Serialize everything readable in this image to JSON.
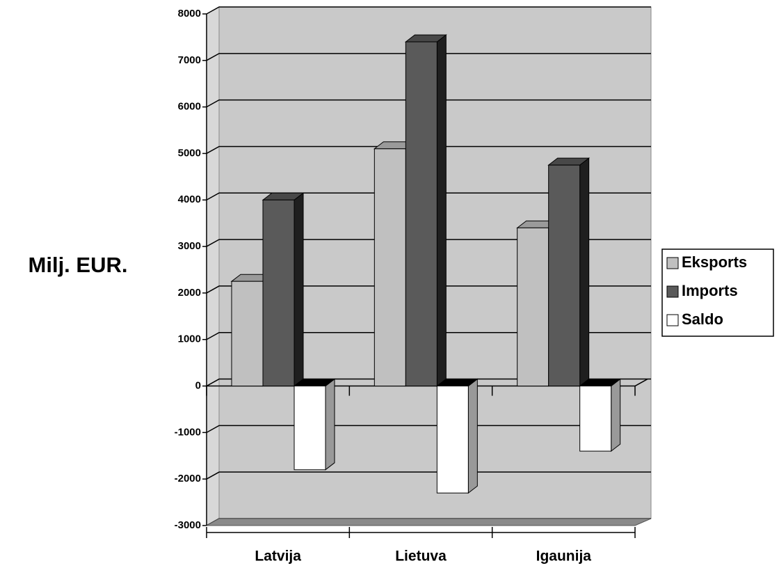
{
  "chart_data": {
    "type": "bar3d",
    "ylabel": "Milj. EUR.",
    "categories": [
      "Latvija",
      "Lietuva",
      "Igaunija"
    ],
    "series": [
      {
        "name": "Eksports",
        "color": "#c0c0c0",
        "values": [
          2250,
          5100,
          3400
        ]
      },
      {
        "name": "Imports",
        "color": "#5a5a5a",
        "values": [
          4000,
          7400,
          4750
        ]
      },
      {
        "name": "Saldo",
        "color": "#ffffff",
        "values": [
          -1800,
          -2300,
          -1400
        ]
      }
    ],
    "ylim": [
      -3000,
      8000
    ],
    "yticks": [
      -3000,
      -2000,
      -1000,
      0,
      1000,
      2000,
      3000,
      4000,
      5000,
      6000,
      7000,
      8000
    ],
    "grid": true,
    "legend": "right"
  }
}
